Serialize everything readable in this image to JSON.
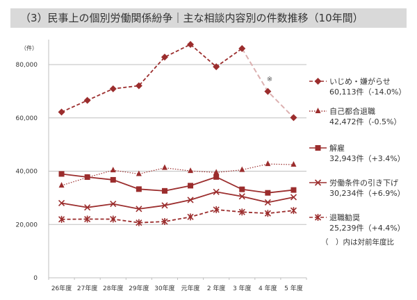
{
  "chart_data": {
    "type": "line",
    "title": "（3）民事上の個別労働関係紛争｜主な相談内容別の件数推移（10年間）",
    "ylabel": "（件）",
    "ylim": [
      0,
      90000
    ],
    "yticks": [
      0,
      20000,
      40000,
      60000,
      80000
    ],
    "ytick_labels": [
      "0",
      "20,000",
      "40,000",
      "60,000",
      "80,000"
    ],
    "grid": true,
    "legend_position": "right",
    "categories": [
      "26年度",
      "27年度",
      "28年度",
      "29年度",
      "30年度",
      "元年度",
      "2 年度",
      "3 年度",
      "4 年度",
      "5 年度"
    ],
    "series": [
      {
        "name": "いじめ・嫌がらせ",
        "summary": "60,113件（-14.0%）",
        "marker": "diamond",
        "dash": "dashed",
        "values": [
          62191,
          66566,
          70917,
          72067,
          82797,
          87570,
          79190,
          86034,
          69932,
          60113
        ]
      },
      {
        "name": "自己都合退職",
        "summary": "42,472件（-0.5%）",
        "marker": "triangle",
        "dash": "dotted",
        "values": [
          34626,
          37648,
          40364,
          38954,
          41258,
          40095,
          39498,
          40501,
          42694,
          42472
        ]
      },
      {
        "name": "解雇",
        "summary": "32,943件（+3.4%）",
        "marker": "square",
        "dash": "solid",
        "values": [
          38966,
          37787,
          36760,
          33269,
          32614,
          34561,
          37826,
          33189,
          31872,
          32943
        ]
      },
      {
        "name": "労働条件の引き下げ",
        "summary": "30,234件（+6.9%）",
        "marker": "x",
        "dash": "solid",
        "values": [
          28015,
          26392,
          27723,
          25841,
          27152,
          29214,
          32240,
          30524,
          28287,
          30234
        ]
      },
      {
        "name": "退職勧奨",
        "summary": "25,239件（+4.4%）",
        "marker": "asterisk",
        "dash": "dashed",
        "values": [
          21928,
          22017,
          22007,
          20677,
          21093,
          22838,
          25560,
          24681,
          24170,
          25239
        ]
      }
    ],
    "annotations": [
      "※",
      "（　）内は対前年度比"
    ],
    "colors": {
      "line": "#9b2d2d",
      "faded": "#dcb0b0",
      "grid": "#bfbfbf"
    }
  }
}
